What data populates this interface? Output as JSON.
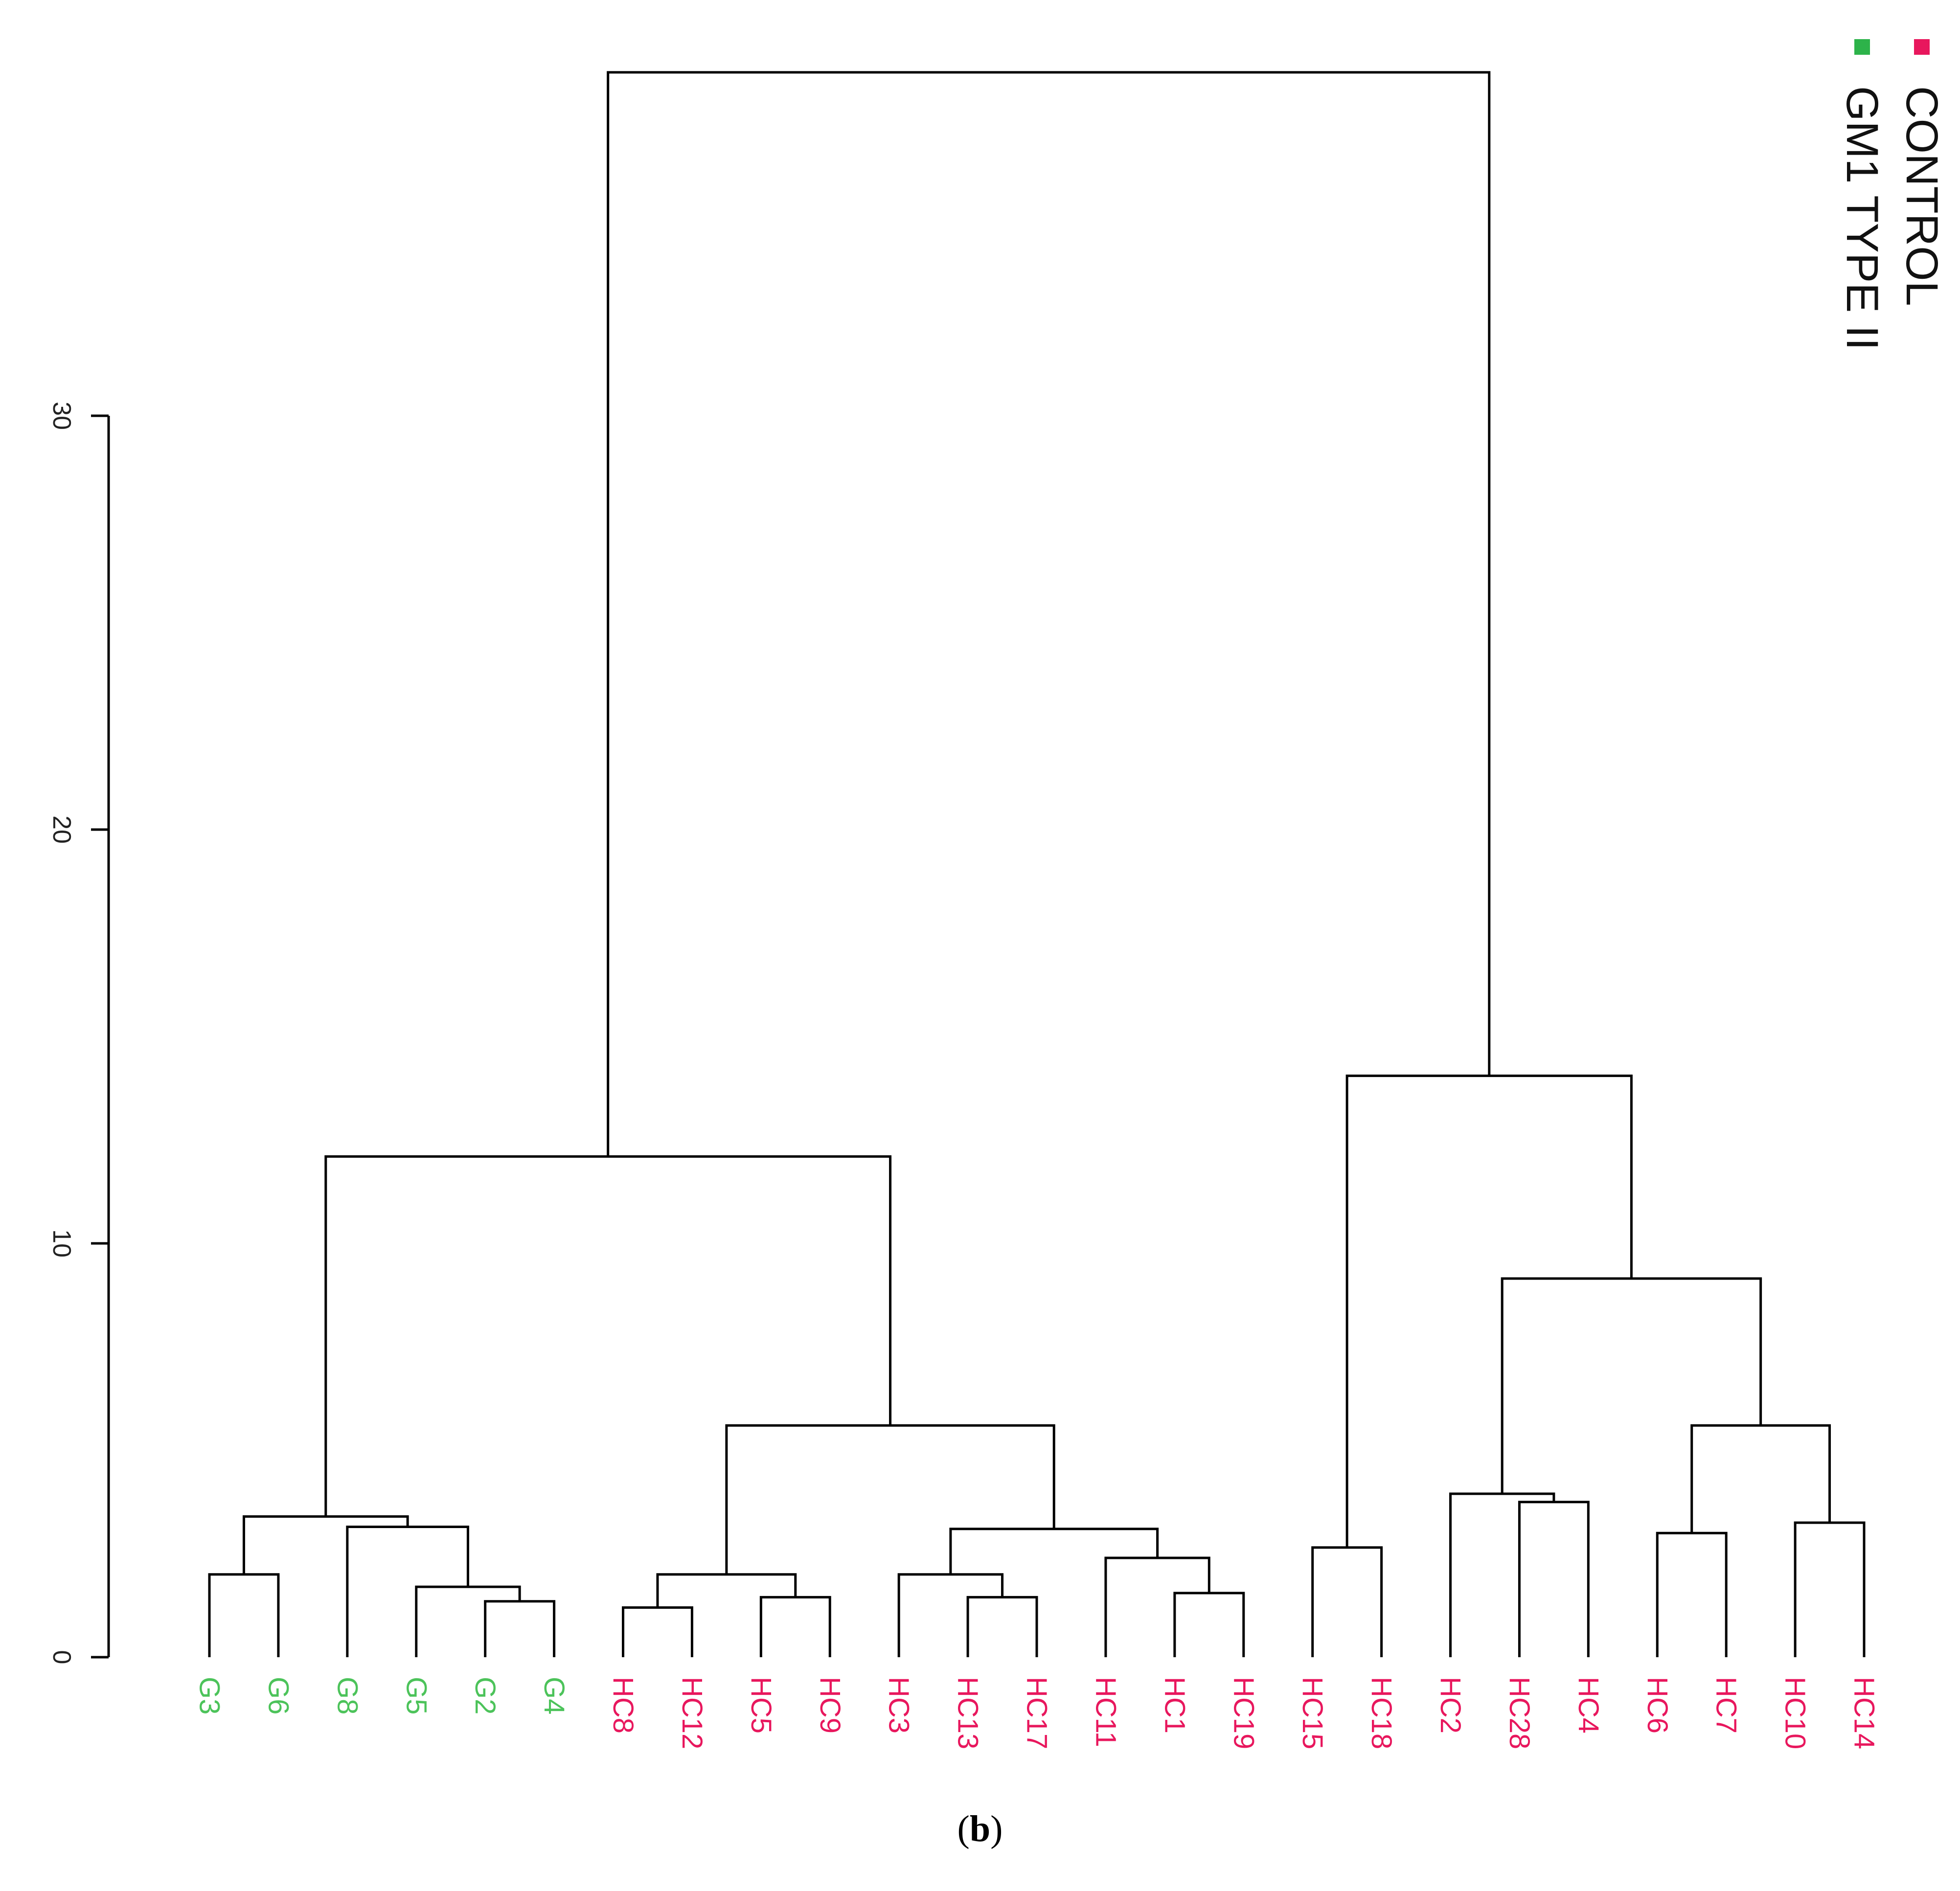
{
  "chart_data": {
    "type": "dendrogram",
    "title": "",
    "xlabel": "",
    "ylabel": "",
    "ylim": [
      0,
      30
    ],
    "yticks": [
      0,
      10,
      20,
      30
    ],
    "leaves": [
      "G3",
      "G6",
      "G8",
      "G5",
      "G2",
      "G4",
      "HC8",
      "HC12",
      "HC5",
      "HC9",
      "HC3",
      "HC13",
      "HC17",
      "HC11",
      "HC1",
      "HC19",
      "HC15",
      "HC18",
      "HC2",
      "HC28",
      "HC4",
      "HC6",
      "HC7",
      "HC10",
      "HC14"
    ],
    "leaf_groups": [
      "gm1",
      "gm1",
      "gm1",
      "gm1",
      "gm1",
      "gm1",
      "control",
      "control",
      "control",
      "control",
      "control",
      "control",
      "control",
      "control",
      "control",
      "control",
      "control",
      "control",
      "control",
      "control",
      "control",
      "control",
      "control",
      "control",
      "control"
    ],
    "merges": [
      {
        "id": "m_g2_g4",
        "left": "G2",
        "right": "G4",
        "height": 1.35
      },
      {
        "id": "m_g5",
        "left": "G5",
        "right": "m_g2_g4",
        "height": 1.7
      },
      {
        "id": "m_g8",
        "left": "G8",
        "right": "m_g5",
        "height": 3.15
      },
      {
        "id": "m_g3_g6",
        "left": "G3",
        "right": "G6",
        "height": 2.0
      },
      {
        "id": "m_gm1",
        "left": "m_g3_g6",
        "right": "m_g8",
        "height": 3.4
      },
      {
        "id": "m_hc8_hc12",
        "left": "HC8",
        "right": "HC12",
        "height": 1.2
      },
      {
        "id": "m_hc5_hc9",
        "left": "HC5",
        "right": "HC9",
        "height": 1.45
      },
      {
        "id": "m_a",
        "left": "m_hc8_hc12",
        "right": "m_hc5_hc9",
        "height": 2.0
      },
      {
        "id": "m_hc13_hc17",
        "left": "HC13",
        "right": "HC17",
        "height": 1.45
      },
      {
        "id": "m_hc3",
        "left": "HC3",
        "right": "m_hc13_hc17",
        "height": 2.0
      },
      {
        "id": "m_hc1_hc19",
        "left": "HC1",
        "right": "HC19",
        "height": 1.55
      },
      {
        "id": "m_hc11",
        "left": "HC11",
        "right": "m_hc1_hc19",
        "height": 2.4
      },
      {
        "id": "m_b",
        "left": "m_hc3",
        "right": "m_hc11",
        "height": 3.1
      },
      {
        "id": "m_c",
        "left": "m_a",
        "right": "m_b",
        "height": 5.6
      },
      {
        "id": "m_left",
        "left": "m_gm1",
        "right": "m_c",
        "height": 12.1
      },
      {
        "id": "m_hc15_hc18",
        "left": "HC15",
        "right": "HC18",
        "height": 2.65
      },
      {
        "id": "m_hc28_hc4",
        "left": "HC28",
        "right": "HC4",
        "height": 3.75
      },
      {
        "id": "m_hc2",
        "left": "HC2",
        "right": "m_hc28_hc4",
        "height": 3.95
      },
      {
        "id": "m_hc6_hc7",
        "left": "HC6",
        "right": "HC7",
        "height": 3.0
      },
      {
        "id": "m_hc10_hc14",
        "left": "HC10",
        "right": "HC14",
        "height": 3.25
      },
      {
        "id": "m_d",
        "left": "m_hc6_hc7",
        "right": "m_hc10_hc14",
        "height": 5.6
      },
      {
        "id": "m_e",
        "left": "m_hc2",
        "right": "m_d",
        "height": 9.15
      },
      {
        "id": "m_f",
        "left": "m_hc15_hc18",
        "right": "m_e",
        "height": 14.05
      },
      {
        "id": "m_root",
        "left": "m_left",
        "right": "m_f",
        "height": 38.3
      }
    ],
    "legend": [
      {
        "label": "CONTROL",
        "color": "#e8175d"
      },
      {
        "label": "GM1 TYPE II",
        "color": "#2db34a"
      }
    ],
    "legend_position": "top-right"
  },
  "colors": {
    "control": "#e8175d",
    "gm1": "#4cc35a",
    "line": "#000000"
  },
  "caption": {
    "open": "(",
    "letter": "b",
    "close": ")"
  }
}
